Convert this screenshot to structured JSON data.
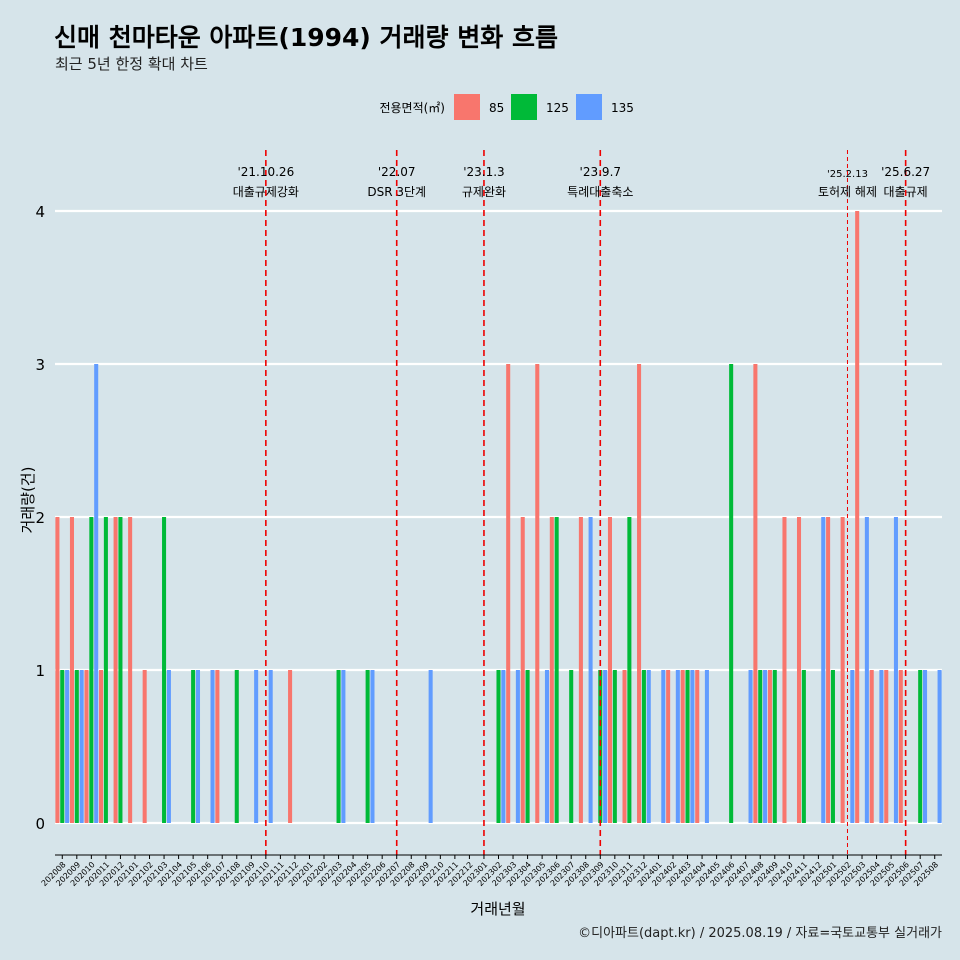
{
  "title": "신매 천마타운 아파트(1994) 거래량 변화 흐름",
  "subtitle": "최근 5년 한정 확대 차트",
  "caption": "©디아파트(dapt.kr) / 2025.08.19 / 자료=국토교통부 실거래가",
  "chart_data": {
    "type": "bar",
    "xlabel": "거래년월",
    "ylabel": "거래량(건)",
    "ylim": [
      0,
      4
    ],
    "yticks": [
      0,
      1,
      2,
      3,
      4
    ],
    "grid": true,
    "legend_position": "top",
    "legend_title": "전용면적(㎡)",
    "categories": [
      "202008",
      "202009",
      "202010",
      "202011",
      "202012",
      "202101",
      "202102",
      "202103",
      "202104",
      "202105",
      "202106",
      "202107",
      "202108",
      "202109",
      "202110",
      "202111",
      "202112",
      "202201",
      "202202",
      "202203",
      "202204",
      "202205",
      "202206",
      "202207",
      "202208",
      "202209",
      "202210",
      "202211",
      "202212",
      "202301",
      "202302",
      "202303",
      "202304",
      "202305",
      "202306",
      "202307",
      "202308",
      "202309",
      "202310",
      "202311",
      "202312",
      "202401",
      "202402",
      "202403",
      "202404",
      "202405",
      "202406",
      "202407",
      "202408",
      "202409",
      "202410",
      "202411",
      "202412",
      "202501",
      "202502",
      "202503",
      "202504",
      "202505",
      "202506",
      "202507",
      "202508"
    ],
    "series": [
      {
        "name": "85",
        "color": "#f8766d",
        "values": [
          2,
          2,
          1,
          1,
          2,
          2,
          1,
          0,
          0,
          0,
          0,
          1,
          0,
          0,
          0,
          0,
          1,
          0,
          0,
          0,
          0,
          0,
          0,
          0,
          0,
          0,
          0,
          0,
          0,
          0,
          0,
          3,
          2,
          3,
          2,
          0,
          2,
          0,
          2,
          1,
          3,
          0,
          1,
          1,
          1,
          0,
          0,
          0,
          3,
          1,
          2,
          2,
          0,
          2,
          2,
          4,
          1,
          1,
          1,
          0,
          0
        ]
      },
      {
        "name": "125",
        "color": "#00ba38",
        "values": [
          1,
          1,
          2,
          2,
          2,
          0,
          0,
          2,
          0,
          1,
          0,
          0,
          1,
          0,
          0,
          0,
          0,
          0,
          0,
          1,
          0,
          1,
          0,
          0,
          0,
          0,
          0,
          0,
          0,
          0,
          1,
          0,
          1,
          0,
          2,
          1,
          0,
          1,
          1,
          2,
          1,
          0,
          0,
          1,
          0,
          0,
          3,
          0,
          1,
          1,
          0,
          1,
          0,
          1,
          0,
          0,
          0,
          0,
          0,
          1,
          0
        ]
      },
      {
        "name": "135",
        "color": "#619cff",
        "values": [
          1,
          1,
          3,
          0,
          0,
          0,
          0,
          1,
          0,
          1,
          1,
          0,
          0,
          1,
          1,
          0,
          0,
          0,
          0,
          1,
          0,
          1,
          0,
          0,
          0,
          1,
          0,
          0,
          0,
          0,
          1,
          1,
          0,
          1,
          0,
          0,
          2,
          1,
          0,
          0,
          1,
          1,
          1,
          1,
          1,
          0,
          0,
          1,
          1,
          0,
          0,
          0,
          2,
          0,
          1,
          2,
          1,
          2,
          0,
          1,
          1
        ]
      }
    ],
    "events": [
      {
        "date": "'21.10.26",
        "label": "대출규제강화",
        "x": "202110",
        "style": "thick"
      },
      {
        "date": "'22.07",
        "label": "DSR 3단계",
        "x": "202207",
        "style": "thick"
      },
      {
        "date": "'23.1.3",
        "label": "규제완화",
        "x": "202301",
        "style": "thick"
      },
      {
        "date": "'23.9.7",
        "label": "특례대출축소",
        "x": "202309",
        "style": "thick"
      },
      {
        "date": "'25.2.13",
        "label": "토허제 해제",
        "x": "202502",
        "style": "thin"
      },
      {
        "date": "'25.6.27",
        "label": "대출규제",
        "x": "202506",
        "style": "thick"
      }
    ]
  }
}
